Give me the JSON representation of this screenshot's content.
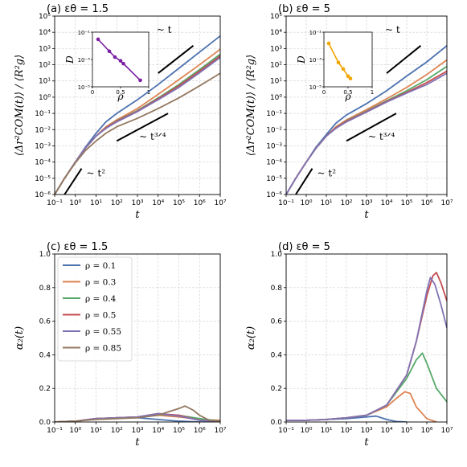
{
  "chart_data": [
    {
      "id": "a",
      "type": "line",
      "title": "(a) εθ = 1.5",
      "xlabel": "t",
      "ylabel": "⟨Δr²COM(t)⟩ / ⟨R²g⟩",
      "xscale": "log",
      "yscale": "log",
      "xlim": [
        0.1,
        10000000
      ],
      "ylim": [
        1e-06,
        100000
      ],
      "xticks": [
        "10⁻¹",
        "10⁰",
        "10¹",
        "10²",
        "10³",
        "10⁴",
        "10⁵",
        "10⁶",
        "10⁷"
      ],
      "yticks": [
        "10⁻⁶",
        "10⁻⁵",
        "10⁻⁴",
        "10⁻³",
        "10⁻²",
        "10⁻¹",
        "10⁰",
        "10¹",
        "10²",
        "10³",
        "10⁴",
        "10⁵"
      ],
      "grid": true,
      "annotations": [
        "~ t",
        "~ t³ᐟ⁴",
        "~ t²"
      ],
      "series": [
        {
          "name": "ρ = 0.1",
          "color": "#4c72b0",
          "x": [
            0.1,
            0.3,
            1,
            3,
            10,
            30,
            100,
            1000,
            10000,
            100000,
            1000000,
            10000000
          ],
          "y": [
            1e-06,
            1e-05,
            0.0001,
            0.0008,
            0.006,
            0.03,
            0.1,
            0.7,
            6,
            60,
            600,
            6000
          ]
        },
        {
          "name": "ρ = 0.3",
          "color": "#dd8452",
          "x": [
            0.1,
            0.3,
            1,
            3,
            10,
            30,
            100,
            1000,
            10000,
            100000,
            1000000,
            10000000
          ],
          "y": [
            1e-06,
            1e-05,
            0.0001,
            0.0007,
            0.004,
            0.015,
            0.04,
            0.2,
            1.5,
            12,
            100,
            900
          ]
        },
        {
          "name": "ρ = 0.4",
          "color": "#55a868",
          "x": [
            0.1,
            0.3,
            1,
            3,
            10,
            30,
            100,
            1000,
            10000,
            100000,
            1000000,
            10000000
          ],
          "y": [
            1e-06,
            1e-05,
            0.0001,
            0.0007,
            0.004,
            0.013,
            0.035,
            0.15,
            0.9,
            6,
            50,
            450
          ]
        },
        {
          "name": "ρ = 0.5",
          "color": "#c44e52",
          "x": [
            0.1,
            0.3,
            1,
            3,
            10,
            30,
            100,
            1000,
            10000,
            100000,
            1000000,
            10000000
          ],
          "y": [
            1e-06,
            1e-05,
            0.0001,
            0.0007,
            0.004,
            0.013,
            0.033,
            0.14,
            0.8,
            5,
            40,
            350
          ]
        },
        {
          "name": "ρ = 0.55",
          "color": "#8172b3",
          "x": [
            0.1,
            0.3,
            1,
            3,
            10,
            30,
            100,
            1000,
            10000,
            100000,
            1000000,
            10000000
          ],
          "y": [
            1e-06,
            1e-05,
            0.0001,
            0.0007,
            0.004,
            0.012,
            0.03,
            0.13,
            0.7,
            4,
            32,
            280
          ]
        },
        {
          "name": "ρ = 0.85",
          "color": "#937860",
          "x": [
            0.1,
            0.3,
            1,
            3,
            10,
            30,
            100,
            1000,
            10000,
            100000,
            1000000,
            10000000
          ],
          "y": [
            1e-06,
            1e-05,
            9e-05,
            0.0005,
            0.002,
            0.006,
            0.015,
            0.05,
            0.2,
            0.9,
            5,
            30
          ]
        }
      ],
      "guides": [
        {
          "label": "~ t",
          "x": [
            10000,
            500000
          ],
          "y": [
            30,
            1500
          ]
        },
        {
          "label": "~ t³ᐟ⁴",
          "x": [
            100,
            30000
          ],
          "y": [
            0.002,
            0.1
          ]
        },
        {
          "label": "~ t²",
          "x": [
            0.3,
            2
          ],
          "y": [
            1e-06,
            4e-05
          ]
        }
      ],
      "inset": {
        "xlabel": "ρ",
        "ylabel": "D",
        "xlim": [
          0,
          1
        ],
        "ylim": [
          1e-05,
          0.1
        ],
        "xticks": [
          "0",
          "0.5",
          "1"
        ],
        "yticks": [
          "10⁻⁵",
          "10⁻³",
          "10⁻¹"
        ],
        "color": "#7b1fa2",
        "x": [
          0.1,
          0.3,
          0.4,
          0.5,
          0.55,
          0.85
        ],
        "y": [
          0.03,
          0.004,
          0.0015,
          0.0008,
          0.0005,
          3e-05
        ]
      }
    },
    {
      "id": "b",
      "type": "line",
      "title": "(b) εθ = 5",
      "xlabel": "t",
      "ylabel": "⟨Δr²COM(t)⟩ / ⟨R²g⟩",
      "xscale": "log",
      "yscale": "log",
      "xlim": [
        0.1,
        10000000
      ],
      "ylim": [
        1e-06,
        100000
      ],
      "xticks": [
        "10⁻¹",
        "10⁰",
        "10¹",
        "10²",
        "10³",
        "10⁴",
        "10⁵",
        "10⁶",
        "10⁷"
      ],
      "yticks": [
        "10⁻⁶",
        "10⁻⁵",
        "10⁻⁴",
        "10⁻³",
        "10⁻²",
        "10⁻¹",
        "10⁰",
        "10¹",
        "10²",
        "10³",
        "10⁴",
        "10⁵"
      ],
      "grid": true,
      "annotations": [
        "~ t",
        "~ t³ᐟ⁴",
        "~ t²"
      ],
      "series": [
        {
          "name": "ρ = 0.1",
          "color": "#4c72b0",
          "x": [
            0.1,
            0.3,
            1,
            3,
            10,
            30,
            100,
            1000,
            10000,
            100000,
            1000000,
            10000000
          ],
          "y": [
            1e-06,
            1e-05,
            0.0001,
            0.0008,
            0.005,
            0.025,
            0.08,
            0.4,
            2.5,
            20,
            150,
            1500
          ]
        },
        {
          "name": "ρ = 0.3",
          "color": "#dd8452",
          "x": [
            0.1,
            0.3,
            1,
            3,
            10,
            30,
            100,
            1000,
            10000,
            100000,
            1000000,
            10000000
          ],
          "y": [
            1e-06,
            1e-05,
            0.0001,
            0.0007,
            0.004,
            0.015,
            0.04,
            0.17,
            0.8,
            4,
            25,
            200
          ]
        },
        {
          "name": "ρ = 0.4",
          "color": "#55a868",
          "x": [
            0.1,
            0.3,
            1,
            3,
            10,
            30,
            100,
            1000,
            10000,
            100000,
            1000000,
            10000000
          ],
          "y": [
            1e-06,
            1e-05,
            0.0001,
            0.0007,
            0.004,
            0.013,
            0.035,
            0.14,
            0.6,
            2.5,
            12,
            80
          ]
        },
        {
          "name": "ρ = 0.5",
          "color": "#c44e52",
          "x": [
            0.1,
            0.3,
            1,
            3,
            10,
            30,
            100,
            1000,
            10000,
            100000,
            1000000,
            10000000
          ],
          "y": [
            1e-06,
            1e-05,
            0.0001,
            0.0007,
            0.004,
            0.013,
            0.033,
            0.13,
            0.55,
            2,
            8,
            40
          ]
        },
        {
          "name": "ρ = 0.55",
          "color": "#8172b3",
          "x": [
            0.1,
            0.3,
            1,
            3,
            10,
            30,
            100,
            1000,
            10000,
            100000,
            1000000,
            10000000
          ],
          "y": [
            1e-06,
            1e-05,
            0.0001,
            0.0007,
            0.004,
            0.012,
            0.03,
            0.12,
            0.5,
            1.8,
            6,
            30
          ]
        }
      ],
      "guides": [
        {
          "label": "~ t",
          "x": [
            10000,
            500000
          ],
          "y": [
            30,
            1500
          ]
        },
        {
          "label": "~ t³ᐟ⁴",
          "x": [
            100,
            30000
          ],
          "y": [
            0.002,
            0.1
          ]
        },
        {
          "label": "~ t²",
          "x": [
            0.3,
            2
          ],
          "y": [
            1e-06,
            4e-05
          ]
        }
      ],
      "inset": {
        "xlabel": "ρ",
        "ylabel": "D",
        "xlim": [
          0,
          1
        ],
        "ylim": [
          1e-05,
          0.1
        ],
        "xticks": [
          "0",
          "0.5",
          "1"
        ],
        "yticks": [
          "10⁻⁵",
          "10⁻³",
          "10⁻¹"
        ],
        "color": "#f0a500",
        "x": [
          0.1,
          0.3,
          0.4,
          0.5,
          0.55
        ],
        "y": [
          0.015,
          0.0006,
          0.0002,
          6e-05,
          4e-05
        ]
      }
    },
    {
      "id": "c",
      "type": "line",
      "title": "(c) εθ = 1.5",
      "xlabel": "t",
      "ylabel": "α₂(t)",
      "xscale": "log",
      "yscale": "linear",
      "xlim": [
        0.1,
        10000000
      ],
      "ylim": [
        0,
        1.0
      ],
      "xticks": [
        "10⁻¹",
        "10⁰",
        "10¹",
        "10²",
        "10³",
        "10⁴",
        "10⁵",
        "10⁶",
        "10⁷"
      ],
      "yticks": [
        "0.0",
        "0.2",
        "0.4",
        "0.6",
        "0.8",
        "1.0"
      ],
      "grid": true,
      "legend": "top-left",
      "series": [
        {
          "name": "ρ = 0.1",
          "color": "#4c72b0",
          "x": [
            0.1,
            1,
            10,
            100,
            1000,
            10000,
            100000,
            1000000,
            10000000
          ],
          "y": [
            0,
            0.005,
            0.02,
            0.025,
            0.025,
            0.015,
            0.005,
            0,
            0
          ]
        },
        {
          "name": "ρ = 0.3",
          "color": "#dd8452",
          "x": [
            0.1,
            1,
            10,
            100,
            1000,
            10000,
            100000,
            1000000,
            10000000
          ],
          "y": [
            0,
            0.005,
            0.02,
            0.025,
            0.03,
            0.04,
            0.03,
            0.015,
            0.01
          ]
        },
        {
          "name": "ρ = 0.4",
          "color": "#55a868",
          "x": [
            0.1,
            1,
            10,
            100,
            1000,
            10000,
            100000,
            1000000,
            10000000
          ],
          "y": [
            0,
            0.005,
            0.02,
            0.025,
            0.03,
            0.045,
            0.04,
            0.02,
            0.005
          ]
        },
        {
          "name": "ρ = 0.5",
          "color": "#c44e52",
          "x": [
            0.1,
            1,
            10,
            100,
            1000,
            10000,
            100000,
            1000000,
            10000000
          ],
          "y": [
            0,
            0.005,
            0.02,
            0.025,
            0.03,
            0.05,
            0.04,
            0.01,
            0.005
          ]
        },
        {
          "name": "ρ = 0.55",
          "color": "#8172b3",
          "x": [
            0.1,
            1,
            10,
            100,
            1000,
            10000,
            100000,
            1000000,
            10000000
          ],
          "y": [
            0,
            0.005,
            0.02,
            0.025,
            0.03,
            0.05,
            0.035,
            0.01,
            0.005
          ]
        },
        {
          "name": "ρ = 0.85",
          "color": "#937860",
          "x": [
            0.1,
            1,
            10,
            100,
            1000,
            10000,
            30000,
            100000,
            200000,
            500000,
            1000000,
            3000000,
            10000000
          ],
          "y": [
            0,
            0.005,
            0.015,
            0.02,
            0.025,
            0.04,
            0.06,
            0.08,
            0.095,
            0.07,
            0.04,
            0.01,
            0.005
          ]
        }
      ]
    },
    {
      "id": "d",
      "type": "line",
      "title": "(d) εθ = 5",
      "xlabel": "t",
      "ylabel": "α₂(t)",
      "xscale": "log",
      "yscale": "linear",
      "xlim": [
        0.1,
        10000000
      ],
      "ylim": [
        0,
        1.0
      ],
      "xticks": [
        "10⁻¹",
        "10⁰",
        "10¹",
        "10²",
        "10³",
        "10⁴",
        "10⁵",
        "10⁶",
        "10⁷"
      ],
      "yticks": [
        "0.0",
        "0.2",
        "0.4",
        "0.6",
        "0.8",
        "1.0"
      ],
      "grid": true,
      "series": [
        {
          "name": "ρ = 0.1",
          "color": "#4c72b0",
          "x": [
            0.1,
            1,
            10,
            100,
            1000,
            3000,
            10000,
            30000,
            100000
          ],
          "y": [
            0.01,
            0.01,
            0.015,
            0.02,
            0.03,
            0.035,
            0.015,
            0.003,
            0
          ]
        },
        {
          "name": "ρ = 0.3",
          "color": "#dd8452",
          "x": [
            0.1,
            1,
            10,
            100,
            1000,
            10000,
            30000,
            80000,
            150000,
            300000,
            1000000,
            3000000
          ],
          "y": [
            0.01,
            0.01,
            0.015,
            0.025,
            0.04,
            0.09,
            0.14,
            0.18,
            0.17,
            0.09,
            0.02,
            0
          ]
        },
        {
          "name": "ρ = 0.4",
          "color": "#55a868",
          "x": [
            0.1,
            1,
            10,
            100,
            1000,
            10000,
            100000,
            300000,
            600000,
            1000000,
            3000000,
            10000000
          ],
          "y": [
            0.01,
            0.01,
            0.015,
            0.025,
            0.04,
            0.1,
            0.26,
            0.37,
            0.41,
            0.35,
            0.2,
            0.12
          ]
        },
        {
          "name": "ρ = 0.5",
          "color": "#c44e52",
          "x": [
            0.1,
            1,
            10,
            100,
            1000,
            10000,
            100000,
            300000,
            1000000,
            2000000,
            3000000,
            5000000,
            10000000
          ],
          "y": [
            0.01,
            0.01,
            0.015,
            0.025,
            0.04,
            0.1,
            0.28,
            0.48,
            0.75,
            0.87,
            0.89,
            0.83,
            0.72
          ]
        },
        {
          "name": "ρ = 0.55",
          "color": "#8172b3",
          "x": [
            0.1,
            1,
            10,
            100,
            1000,
            10000,
            100000,
            300000,
            1000000,
            1500000,
            2500000,
            5000000,
            10000000
          ],
          "y": [
            0.01,
            0.01,
            0.015,
            0.025,
            0.04,
            0.1,
            0.28,
            0.48,
            0.78,
            0.86,
            0.82,
            0.7,
            0.56
          ]
        }
      ]
    }
  ]
}
